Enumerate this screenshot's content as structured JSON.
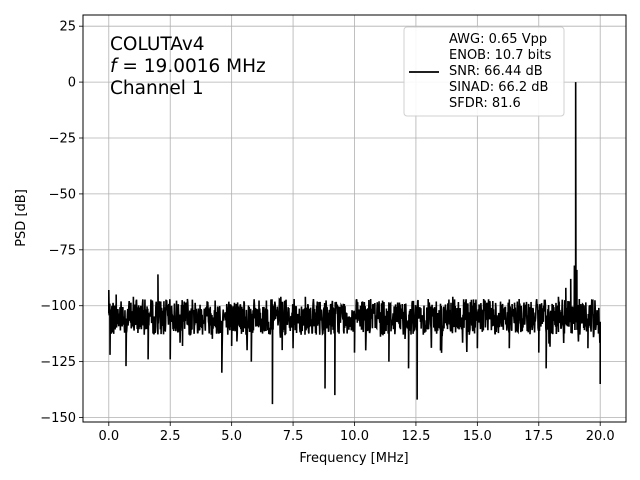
{
  "chart_data": {
    "type": "line",
    "title": "",
    "xlabel": "Frequency [MHz]",
    "ylabel": "PSD [dB]",
    "xlim": [
      -1.05,
      21.05
    ],
    "ylim": [
      -152,
      30
    ],
    "x_ticks": [
      0.0,
      2.5,
      5.0,
      7.5,
      10.0,
      12.5,
      15.0,
      17.5,
      20.0
    ],
    "x_tick_labels": [
      "0.0",
      "2.5",
      "5.0",
      "7.5",
      "10.0",
      "12.5",
      "15.0",
      "17.5",
      "20.0"
    ],
    "y_ticks": [
      25,
      0,
      -25,
      -50,
      -75,
      -100,
      -125,
      -150
    ],
    "y_tick_labels": [
      "25",
      "0",
      "−25",
      "−50",
      "−75",
      "−100",
      "−125",
      "−150"
    ],
    "grid": true,
    "legend_position": "top-right",
    "annotation": {
      "line1": "COLUTAv4",
      "line2_var": "f",
      "line2_rest": " = 19.0016 MHz",
      "line3": "Channel 1"
    },
    "legend_entries": [
      "AWG: 0.65 Vpp",
      "ENOB: 10.7 bits",
      "SNR: 66.44 dB",
      "SINAD: 66.2 dB",
      "SFDR: 81.6"
    ],
    "series": [
      {
        "color": "#000000",
        "noise_floor_db": -105,
        "noise_spread_db": 8,
        "spectrum_points": [
          [
            0.0,
            -93
          ],
          [
            0.05,
            -122
          ],
          [
            0.3,
            -95
          ],
          [
            0.7,
            -127
          ],
          [
            1.0,
            -96
          ],
          [
            1.6,
            -124
          ],
          [
            2.0,
            -86
          ],
          [
            2.05,
            -105
          ],
          [
            2.5,
            -124
          ],
          [
            3.0,
            -118
          ],
          [
            3.2,
            -97
          ],
          [
            4.0,
            -98
          ],
          [
            4.6,
            -130
          ],
          [
            5.0,
            -118
          ],
          [
            5.5,
            -98
          ],
          [
            5.8,
            -125
          ],
          [
            6.66,
            -144
          ],
          [
            7.0,
            -96
          ],
          [
            7.5,
            -118
          ],
          [
            8.0,
            -96
          ],
          [
            8.8,
            -137
          ],
          [
            9.2,
            -140
          ],
          [
            10.0,
            -121
          ],
          [
            11.0,
            -98
          ],
          [
            11.4,
            -125
          ],
          [
            12.2,
            -128
          ],
          [
            12.55,
            -142
          ],
          [
            13.0,
            -97
          ],
          [
            13.5,
            -120
          ],
          [
            14.0,
            -96
          ],
          [
            15.0,
            -119
          ],
          [
            15.5,
            -98
          ],
          [
            16.3,
            -119
          ],
          [
            16.7,
            -97
          ],
          [
            17.5,
            -121
          ],
          [
            17.8,
            -128
          ],
          [
            18.3,
            -96
          ],
          [
            18.6,
            -92
          ],
          [
            18.8,
            -88
          ],
          [
            18.95,
            -82
          ],
          [
            19.0016,
            0
          ],
          [
            19.05,
            -84
          ],
          [
            19.15,
            -97
          ],
          [
            19.5,
            -119
          ],
          [
            20.0,
            -135
          ]
        ]
      }
    ]
  }
}
